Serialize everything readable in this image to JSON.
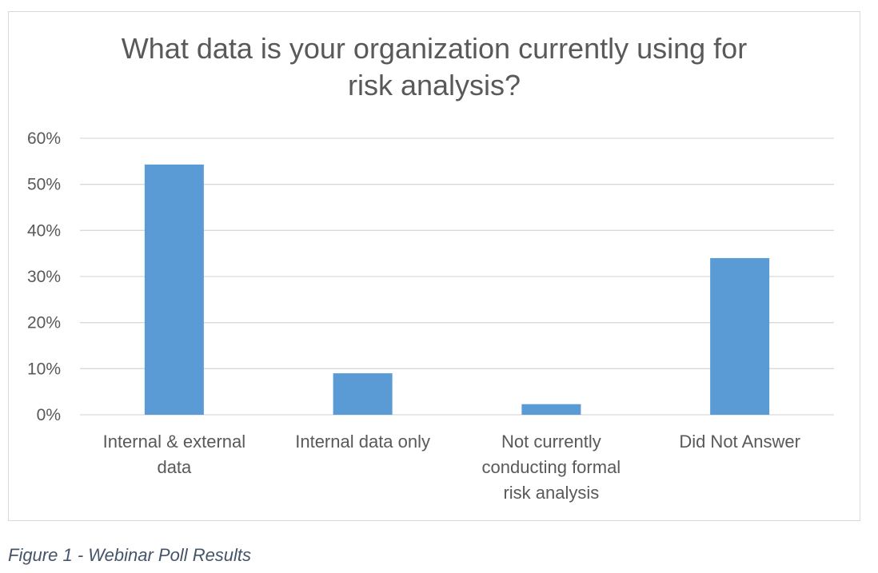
{
  "chart_data": {
    "type": "bar",
    "title_lines": [
      "What data is your organization currently using for",
      "risk analysis?"
    ],
    "categories": [
      [
        "Internal & external",
        "data"
      ],
      [
        "Internal data only"
      ],
      [
        "Not currently",
        "conducting formal",
        "risk analysis"
      ],
      [
        "Did Not Answer"
      ]
    ],
    "values": [
      54.3,
      9,
      2.3,
      34
    ],
    "yticks": [
      "0%",
      "10%",
      "20%",
      "30%",
      "40%",
      "50%",
      "60%"
    ],
    "ylim": [
      0,
      60
    ],
    "grid": true,
    "bar_color": "#5b9bd5",
    "grid_color": "#d9d9d9"
  },
  "caption": "Figure 1 - Webinar Poll Results"
}
